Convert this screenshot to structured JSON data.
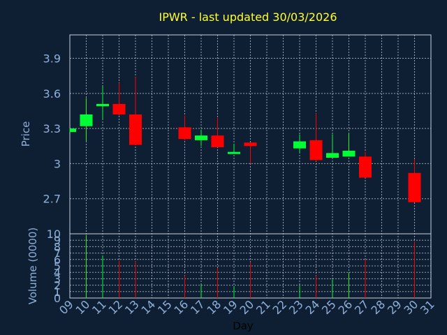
{
  "chart_data": {
    "type": "candlestick",
    "title": "IPWR - last updated 30/03/2026",
    "xlabel": "Day",
    "ylabel": "Price",
    "volume_label": "Volume (0000)",
    "x_ticks": [
      "09",
      "10",
      "11",
      "12",
      "13",
      "14",
      "15",
      "16",
      "17",
      "18",
      "19",
      "20",
      "21",
      "22",
      "23",
      "24",
      "25",
      "26",
      "27",
      "28",
      "29",
      "30",
      "31"
    ],
    "price_ticks": [
      "2.7",
      "3",
      "3.3",
      "3.6",
      "3.9"
    ],
    "price_ylim": [
      2.4,
      4.1
    ],
    "volume_ticks": [
      "0",
      "1",
      "2",
      "3",
      "4",
      "5",
      "6",
      "7",
      "8",
      "9",
      "10"
    ],
    "volume_ylim": [
      0,
      10
    ],
    "colors": {
      "up": "#00ff33",
      "down": "#ff0000",
      "background": "#0f1f33",
      "title": "#ffff33",
      "axis_text": "#8fb0d9"
    },
    "candles": [
      {
        "day": 9,
        "open": 3.27,
        "high": 3.3,
        "low": 3.27,
        "close": 3.3,
        "volume": 0.0
      },
      {
        "day": 10,
        "open": 3.32,
        "high": 3.56,
        "low": 3.19,
        "close": 3.42,
        "volume": 9.8
      },
      {
        "day": 11,
        "open": 3.49,
        "high": 3.66,
        "low": 3.38,
        "close": 3.51,
        "volume": 6.6
      },
      {
        "day": 12,
        "open": 3.51,
        "high": 3.69,
        "low": 3.41,
        "close": 3.42,
        "volume": 5.8
      },
      {
        "day": 13,
        "open": 3.42,
        "high": 3.74,
        "low": 3.16,
        "close": 3.16,
        "volume": 5.7
      },
      {
        "day": 16,
        "open": 3.31,
        "high": 3.41,
        "low": 3.2,
        "close": 3.21,
        "volume": 3.5
      },
      {
        "day": 17,
        "open": 3.2,
        "high": 3.29,
        "low": 3.15,
        "close": 3.24,
        "volume": 2.1
      },
      {
        "day": 18,
        "open": 3.24,
        "high": 3.39,
        "low": 3.14,
        "close": 3.14,
        "volume": 4.7
      },
      {
        "day": 19,
        "open": 3.09,
        "high": 3.17,
        "low": 3.09,
        "close": 3.1,
        "volume": 1.8
      },
      {
        "day": 20,
        "open": 3.18,
        "high": 3.18,
        "low": 3.0,
        "close": 3.15,
        "volume": 5.6
      },
      {
        "day": 23,
        "open": 3.13,
        "high": 3.25,
        "low": 3.09,
        "close": 3.19,
        "volume": 1.9
      },
      {
        "day": 24,
        "open": 3.2,
        "high": 3.43,
        "low": 3.02,
        "close": 3.03,
        "volume": 3.5
      },
      {
        "day": 25,
        "open": 3.05,
        "high": 3.25,
        "low": 3.05,
        "close": 3.09,
        "volume": 2.9
      },
      {
        "day": 26,
        "open": 3.06,
        "high": 3.26,
        "low": 3.06,
        "close": 3.11,
        "volume": 4.0
      },
      {
        "day": 27,
        "open": 3.06,
        "high": 3.1,
        "low": 2.88,
        "close": 2.88,
        "volume": 6.0
      },
      {
        "day": 30,
        "open": 2.92,
        "high": 3.04,
        "low": 2.67,
        "close": 2.67,
        "volume": 8.8
      }
    ]
  }
}
